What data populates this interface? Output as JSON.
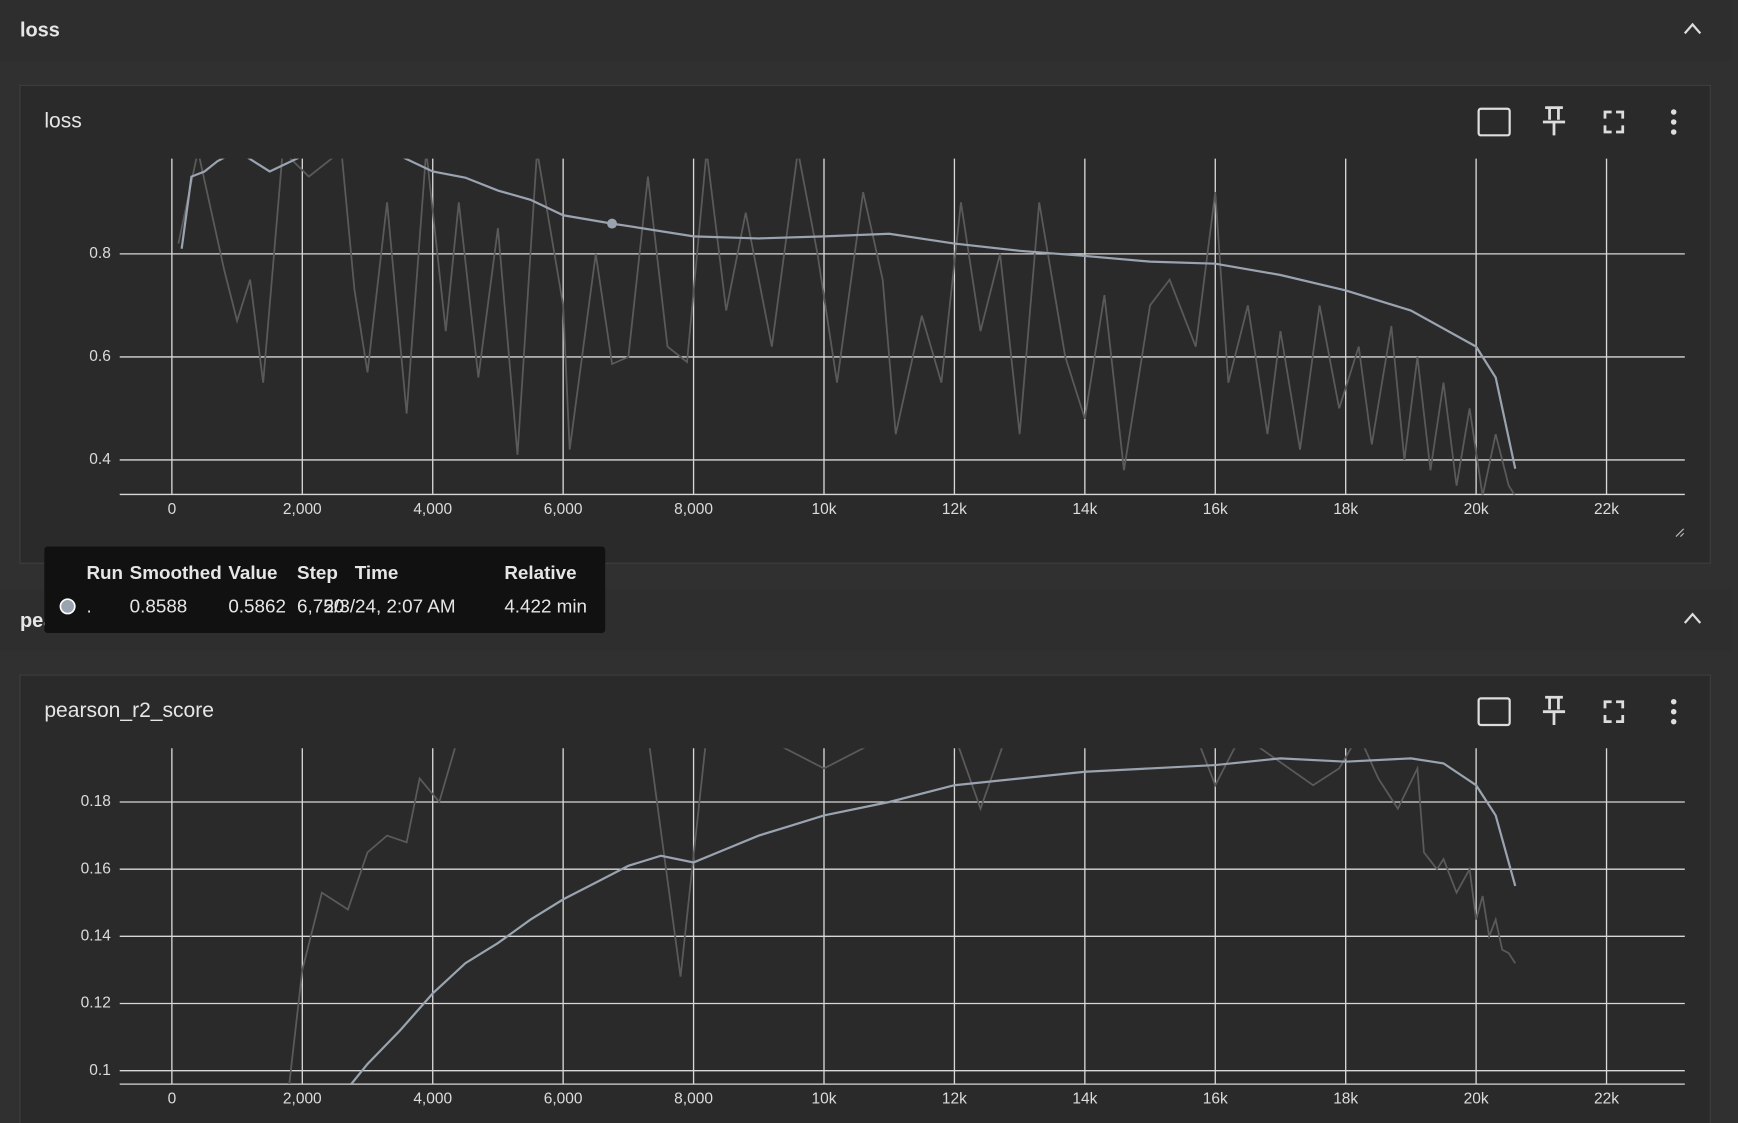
{
  "chart_data": [
    {
      "type": "line",
      "section": "loss",
      "title": "loss",
      "xlim": [
        -800,
        23200
      ],
      "ylim": [
        0.333,
        0.985
      ],
      "xticks": [
        0,
        {
          "value": 2000,
          "label": "2,000"
        },
        {
          "value": 4000,
          "label": "4,000"
        },
        {
          "value": 6000,
          "label": "6,000"
        },
        {
          "value": 8000,
          "label": "8,000"
        },
        {
          "value": 10000,
          "label": "10k"
        },
        {
          "value": 12000,
          "label": "12k"
        },
        {
          "value": 14000,
          "label": "14k"
        },
        {
          "value": 16000,
          "label": "16k"
        },
        {
          "value": 18000,
          "label": "18k"
        },
        {
          "value": 20000,
          "label": "20k"
        },
        {
          "value": 22000,
          "label": "22k"
        }
      ],
      "yticks": [
        0.4,
        0.6,
        0.8
      ],
      "grid": true,
      "series": [
        {
          "color": "#5a5a5a",
          "x": [
            100,
            400,
            800,
            1000,
            1200,
            1400,
            1700,
            2100,
            2600,
            2800,
            3000,
            3300,
            3600,
            3900,
            4200,
            4400,
            4700,
            5000,
            5300,
            5600,
            6000,
            6100,
            6500,
            6750,
            7000,
            7300,
            7600,
            7900,
            8200,
            8500,
            8800,
            9200,
            9600,
            9900,
            10200,
            10600,
            10900,
            11100,
            11500,
            11800,
            12100,
            12400,
            12700,
            13000,
            13300,
            13700,
            14000,
            14300,
            14600,
            15000,
            15300,
            15700,
            16000,
            16200,
            16500,
            16800,
            17000,
            17300,
            17600,
            17900,
            18200,
            18400,
            18700,
            18900,
            19100,
            19300,
            19500,
            19700,
            19900,
            20100,
            20300,
            20500,
            20600
          ],
          "values": [
            0.82,
            1.0,
            0.77,
            0.67,
            0.75,
            0.55,
            1.0,
            0.95,
            1.0,
            0.73,
            0.57,
            0.9,
            0.49,
            1.0,
            0.65,
            0.9,
            0.56,
            0.85,
            0.41,
            1.0,
            0.7,
            0.42,
            0.8,
            0.5862,
            0.6,
            0.95,
            0.62,
            0.59,
            1.0,
            0.69,
            0.88,
            0.62,
            1.0,
            0.8,
            0.55,
            0.92,
            0.75,
            0.45,
            0.68,
            0.55,
            0.9,
            0.65,
            0.8,
            0.45,
            0.9,
            0.6,
            0.48,
            0.72,
            0.38,
            0.7,
            0.75,
            0.62,
            0.92,
            0.55,
            0.7,
            0.45,
            0.65,
            0.42,
            0.7,
            0.5,
            0.62,
            0.43,
            0.66,
            0.4,
            0.6,
            0.38,
            0.55,
            0.35,
            0.5,
            0.33,
            0.45,
            0.35,
            0.33
          ]
        },
        {
          "color": "#9aa3b0",
          "x": [
            150,
            300,
            500,
            700,
            1000,
            1500,
            2000,
            3000,
            3500,
            4000,
            4500,
            5000,
            5500,
            6000,
            6750,
            7000,
            8000,
            9000,
            10000,
            11000,
            12000,
            13000,
            14000,
            15000,
            16000,
            17000,
            18000,
            19000,
            20000,
            20300,
            20600
          ],
          "values": [
            0.81,
            0.95,
            0.96,
            0.98,
            1.0,
            0.96,
            0.99,
            1.0,
            0.99,
            0.96,
            0.948,
            0.923,
            0.905,
            0.875,
            0.8588,
            0.854,
            0.834,
            0.83,
            0.834,
            0.839,
            0.82,
            0.806,
            0.796,
            0.785,
            0.781,
            0.759,
            0.729,
            0.69,
            0.62,
            0.56,
            0.383
          ]
        }
      ],
      "tooltip": {
        "columns": [
          "Run",
          "Smoothed",
          "Value",
          "Step",
          "Time",
          "Relative"
        ],
        "cells": [
          ".",
          0.8588,
          0.5862,
          {
            "value": 6750,
            "label": "6,750"
          },
          "2/3/24, 2:07 AM",
          "4.422 min"
        ]
      }
    },
    {
      "type": "line",
      "section": "pearson_r2_score",
      "title": "pearson_r2_score",
      "xlim": [
        -800,
        23200
      ],
      "ylim": [
        0.096,
        0.196
      ],
      "xticks": [
        0,
        {
          "value": 2000,
          "label": "2,000"
        },
        {
          "value": 4000,
          "label": "4,000"
        },
        {
          "value": 6000,
          "label": "6,000"
        },
        {
          "value": 8000,
          "label": "8,000"
        },
        {
          "value": 10000,
          "label": "10k"
        },
        {
          "value": 12000,
          "label": "12k"
        },
        {
          "value": 14000,
          "label": "14k"
        },
        {
          "value": 16000,
          "label": "16k"
        },
        {
          "value": 18000,
          "label": "18k"
        },
        {
          "value": 20000,
          "label": "20k"
        },
        {
          "value": 22000,
          "label": "22k"
        }
      ],
      "yticks": [
        0.1,
        0.12,
        0.14,
        0.16,
        0.18
      ],
      "grid": true,
      "series": [
        {
          "color": "#5a5a5a",
          "x": [
            1800,
            2000,
            2300,
            2700,
            3000,
            3300,
            3600,
            3800,
            4100,
            4400,
            5000,
            5400,
            7300,
            7800,
            8200,
            9000,
            10000,
            11000,
            12000,
            12400,
            12800,
            15700,
            16000,
            16400,
            17500,
            17900,
            18200,
            18500,
            18800,
            19100,
            19200,
            19400,
            19500,
            19700,
            19900,
            20000,
            20100,
            20200,
            20300,
            20400,
            20500,
            20600
          ],
          "values": [
            0.096,
            0.13,
            0.153,
            0.148,
            0.165,
            0.17,
            0.168,
            0.187,
            0.18,
            0.2,
            0.198,
            0.21,
            0.2,
            0.128,
            0.2,
            0.2,
            0.19,
            0.2,
            0.2,
            0.178,
            0.2,
            0.2,
            0.185,
            0.2,
            0.185,
            0.19,
            0.2,
            0.187,
            0.178,
            0.19,
            0.165,
            0.16,
            0.163,
            0.153,
            0.16,
            0.145,
            0.152,
            0.14,
            0.145,
            0.136,
            0.135,
            0.132
          ]
        },
        {
          "color": "#9aa3b0",
          "x": [
            2750,
            3000,
            3500,
            4000,
            4500,
            5000,
            5500,
            6000,
            6500,
            7000,
            7500,
            8000,
            8500,
            9000,
            9500,
            10000,
            11000,
            12000,
            13000,
            14000,
            15000,
            16000,
            17000,
            18000,
            19000,
            19500,
            20000,
            20300,
            20600
          ],
          "values": [
            0.096,
            0.102,
            0.112,
            0.123,
            0.132,
            0.138,
            0.145,
            0.151,
            0.156,
            0.161,
            0.164,
            0.162,
            0.166,
            0.17,
            0.173,
            0.176,
            0.18,
            0.185,
            0.187,
            0.189,
            0.19,
            0.191,
            0.193,
            0.192,
            0.193,
            0.1915,
            0.185,
            0.176,
            0.155
          ]
        }
      ]
    }
  ]
}
